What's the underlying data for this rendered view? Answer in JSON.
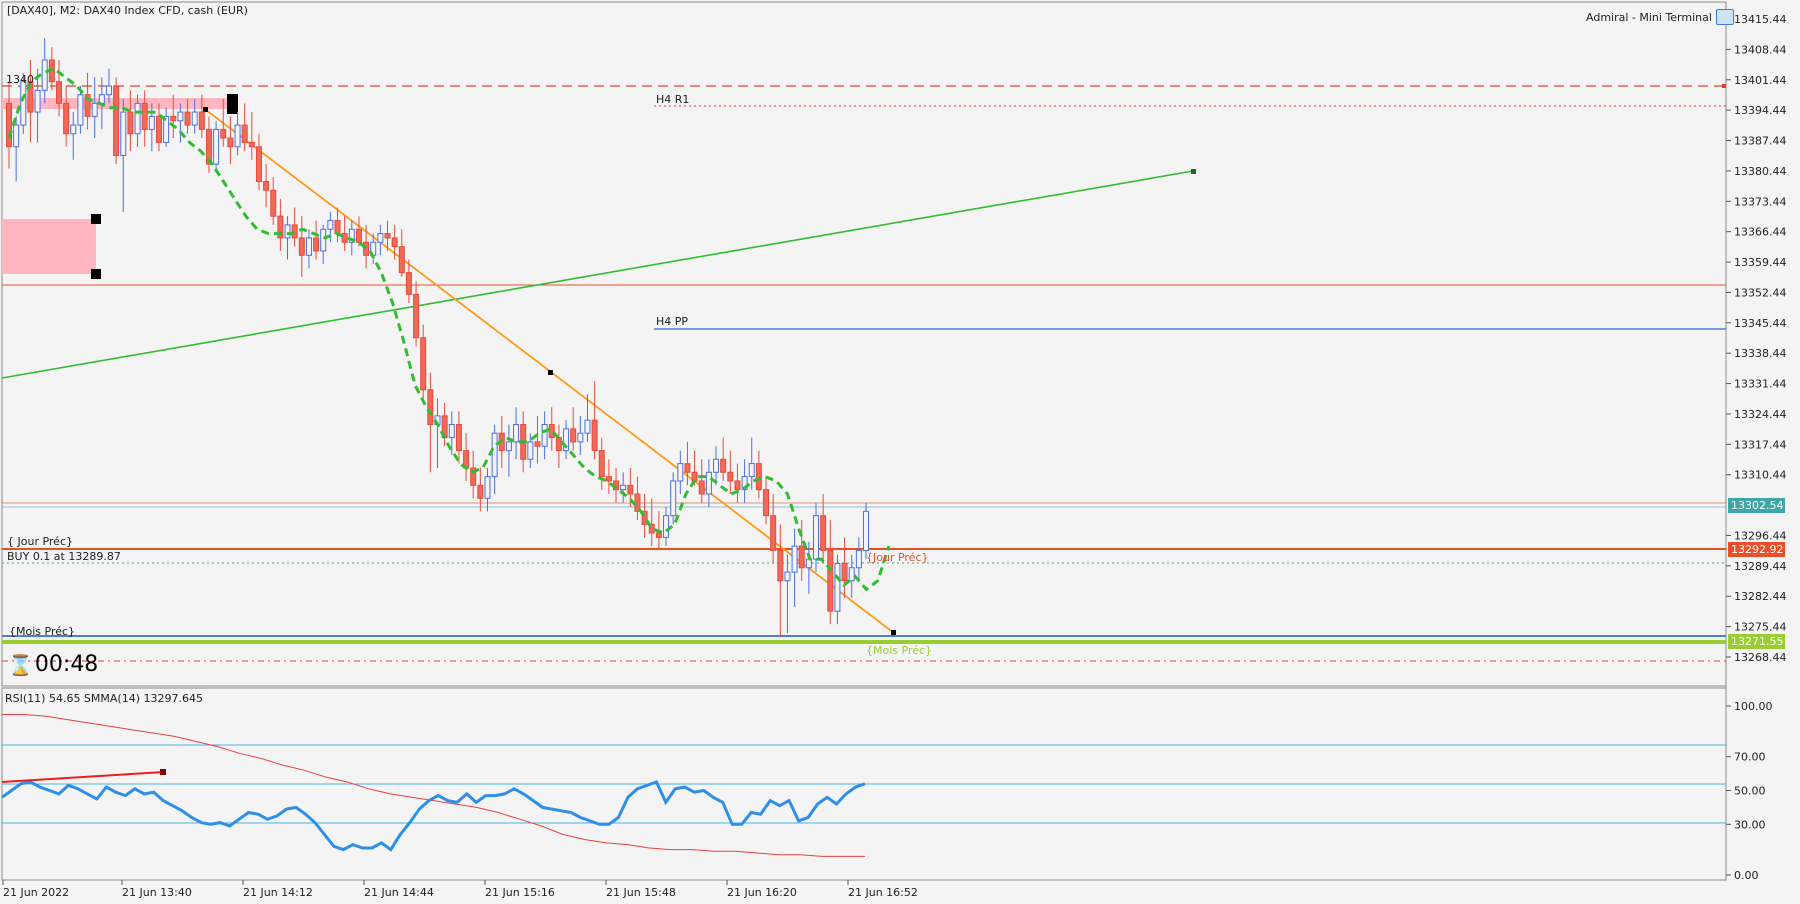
{
  "window": {
    "title": "[DAX40], M2:  DAX40 Index CFD, cash (EUR)",
    "badge": "Admiral - Mini Terminal"
  },
  "countdown": "00:48",
  "price_axis": {
    "labels": [
      "13415.44",
      "13408.44",
      "13401.44",
      "13394.44",
      "13387.44",
      "13380.44",
      "13373.44",
      "13366.44",
      "13359.44",
      "13352.44",
      "13345.44",
      "13338.44",
      "13331.44",
      "13324.44",
      "13317.44",
      "13310.44",
      "13296.44",
      "13289.44",
      "13282.44",
      "13275.44",
      "13268.44"
    ],
    "current_price_tag": "13302.54",
    "order_price_tag": "13292.92",
    "month_prev_tag": "13271.55",
    "colors": {
      "current": "#3fa6a6",
      "order": "#e8502a",
      "month": "#9acd32"
    }
  },
  "labels": {
    "h4_r1": "H4 R1",
    "h4_pp": "H4 PP",
    "jour_prec_left": "{ Jour Préc}",
    "buy_order": "BUY 0.1 at 13289.87",
    "jour_prec_right": "{Jour Préc}",
    "mois_prec_left": "{Mois Préc}",
    "mois_prec_right": "{Mois Préc}",
    "truncated_price": "1340"
  },
  "rsi": {
    "title": "RSI(11) 54.65 SMMA(14) 13297.645",
    "levels": [
      "100.00",
      "70.00",
      "50.00",
      "30.00",
      "0.00"
    ]
  },
  "time_axis": {
    "labels": [
      "21 Jun 2022",
      "21 Jun 13:40",
      "21 Jun 14:12",
      "21 Jun 14:44",
      "21 Jun 15:16",
      "21 Jun 15:48",
      "21 Jun 16:20",
      "21 Jun 16:52"
    ]
  },
  "chart_data": {
    "type": "candlestick",
    "symbol": "DAX40",
    "timeframe": "M2",
    "ylim": [
      13264,
      13419
    ],
    "candles_ohlc": [
      [
        13396,
        13401,
        13381,
        13386
      ],
      [
        13386,
        13393,
        13378,
        13391
      ],
      [
        13391,
        13403,
        13389,
        13401
      ],
      [
        13401,
        13406,
        13387,
        13394
      ],
      [
        13394,
        13404,
        13387,
        13399
      ],
      [
        13399,
        13411,
        13396,
        13406
      ],
      [
        13406,
        13409,
        13399,
        13401
      ],
      [
        13401,
        13406,
        13393,
        13396
      ],
      [
        13396,
        13400,
        13386,
        13389
      ],
      [
        13389,
        13394,
        13383,
        13391
      ],
      [
        13391,
        13400,
        13389,
        13398
      ],
      [
        13398,
        13403,
        13390,
        13393
      ],
      [
        13393,
        13402,
        13388,
        13396
      ],
      [
        13396,
        13402,
        13390,
        13398
      ],
      [
        13398,
        13404,
        13396,
        13400
      ],
      [
        13400,
        13402,
        13382,
        13384
      ],
      [
        13384,
        13397,
        13371,
        13394
      ],
      [
        13394,
        13399,
        13385,
        13389
      ],
      [
        13389,
        13398,
        13386,
        13396
      ],
      [
        13396,
        13399,
        13386,
        13390
      ],
      [
        13390,
        13396,
        13385,
        13393
      ],
      [
        13393,
        13396,
        13385,
        13387
      ],
      [
        13387,
        13395,
        13386,
        13393
      ],
      [
        13393,
        13398,
        13388,
        13392
      ],
      [
        13392,
        13396,
        13387,
        13394
      ],
      [
        13394,
        13397,
        13389,
        13391
      ],
      [
        13391,
        13397,
        13389,
        13394
      ],
      [
        13394,
        13398,
        13388,
        13390
      ],
      [
        13390,
        13393,
        13380,
        13382
      ],
      [
        13382,
        13392,
        13380,
        13390
      ],
      [
        13390,
        13397,
        13386,
        13388
      ],
      [
        13388,
        13393,
        13382,
        13386
      ],
      [
        13386,
        13394,
        13384,
        13391
      ],
      [
        13391,
        13396,
        13385,
        13387
      ],
      [
        13387,
        13394,
        13383,
        13386
      ],
      [
        13386,
        13389,
        13376,
        13378
      ],
      [
        13378,
        13382,
        13372,
        13376
      ],
      [
        13376,
        13379,
        13368,
        13370
      ],
      [
        13370,
        13374,
        13362,
        13365
      ],
      [
        13365,
        13370,
        13360,
        13368
      ],
      [
        13368,
        13372,
        13363,
        13365
      ],
      [
        13365,
        13370,
        13356,
        13361
      ],
      [
        13361,
        13367,
        13358,
        13365
      ],
      [
        13365,
        13369,
        13360,
        13362
      ],
      [
        13362,
        13368,
        13359,
        13367
      ],
      [
        13367,
        13371,
        13364,
        13369
      ],
      [
        13369,
        13372,
        13364,
        13366
      ],
      [
        13366,
        13370,
        13362,
        13364
      ],
      [
        13364,
        13369,
        13361,
        13367
      ],
      [
        13367,
        13370,
        13363,
        13364
      ],
      [
        13364,
        13368,
        13358,
        13361
      ],
      [
        13361,
        13366,
        13359,
        13364
      ],
      [
        13364,
        13368,
        13361,
        13366
      ],
      [
        13366,
        13369,
        13362,
        13365
      ],
      [
        13365,
        13368,
        13360,
        13363
      ],
      [
        13363,
        13367,
        13356,
        13357
      ],
      [
        13357,
        13360,
        13350,
        13352
      ],
      [
        13352,
        13355,
        13340,
        13342
      ],
      [
        13342,
        13345,
        13328,
        13330
      ],
      [
        13330,
        13334,
        13311,
        13322
      ],
      [
        13322,
        13328,
        13312,
        13324
      ],
      [
        13324,
        13327,
        13317,
        13319
      ],
      [
        13319,
        13325,
        13315,
        13322
      ],
      [
        13322,
        13325,
        13313,
        13316
      ],
      [
        13316,
        13320,
        13309,
        13312
      ],
      [
        13312,
        13316,
        13305,
        13308
      ],
      [
        13308,
        13312,
        13302,
        13305
      ],
      [
        13305,
        13312,
        13302,
        13310
      ],
      [
        13310,
        13322,
        13306,
        13320
      ],
      [
        13320,
        13324,
        13312,
        13316
      ],
      [
        13316,
        13322,
        13310,
        13318
      ],
      [
        13318,
        13326,
        13314,
        13322
      ],
      [
        13322,
        13325,
        13311,
        13314
      ],
      [
        13314,
        13320,
        13312,
        13318
      ],
      [
        13318,
        13324,
        13313,
        13317
      ],
      [
        13317,
        13325,
        13314,
        13322
      ],
      [
        13322,
        13326,
        13316,
        13319
      ],
      [
        13319,
        13322,
        13312,
        13316
      ],
      [
        13316,
        13323,
        13314,
        13321
      ],
      [
        13321,
        13326,
        13316,
        13318
      ],
      [
        13318,
        13324,
        13315,
        13320
      ],
      [
        13320,
        13329,
        13318,
        13323
      ],
      [
        13323,
        13332,
        13314,
        13316
      ],
      [
        13316,
        13319,
        13307,
        13310
      ],
      [
        13310,
        13314,
        13306,
        13309
      ],
      [
        13309,
        13312,
        13304,
        13307
      ],
      [
        13307,
        13311,
        13304,
        13308
      ],
      [
        13308,
        13312,
        13303,
        13306
      ],
      [
        13306,
        13310,
        13300,
        13302
      ],
      [
        13302,
        13306,
        13296,
        13299
      ],
      [
        13299,
        13305,
        13294,
        13297
      ],
      [
        13297,
        13302,
        13293,
        13296
      ],
      [
        13296,
        13303,
        13294,
        13301
      ],
      [
        13301,
        13311,
        13299,
        13309
      ],
      [
        13309,
        13316,
        13306,
        13313
      ],
      [
        13313,
        13318,
        13308,
        13311
      ],
      [
        13311,
        13316,
        13308,
        13309
      ],
      [
        13309,
        13314,
        13304,
        13306
      ],
      [
        13306,
        13314,
        13303,
        13311
      ],
      [
        13311,
        13317,
        13308,
        13314
      ],
      [
        13314,
        13319,
        13309,
        13311
      ],
      [
        13311,
        13316,
        13306,
        13309
      ],
      [
        13309,
        13313,
        13304,
        13307
      ],
      [
        13307,
        13314,
        13304,
        13310
      ],
      [
        13310,
        13319,
        13307,
        13313
      ],
      [
        13313,
        13316,
        13305,
        13307
      ],
      [
        13307,
        13310,
        13299,
        13301
      ],
      [
        13301,
        13306,
        13290,
        13293
      ],
      [
        13293,
        13299,
        13273,
        13286
      ],
      [
        13286,
        13292,
        13274,
        13288
      ],
      [
        13288,
        13298,
        13280,
        13294
      ],
      [
        13294,
        13300,
        13286,
        13289
      ],
      [
        13289,
        13295,
        13283,
        13291
      ],
      [
        13291,
        13304,
        13288,
        13301
      ],
      [
        13301,
        13306,
        13290,
        13293
      ],
      [
        13293,
        13300,
        13276,
        13279
      ],
      [
        13279,
        13292,
        13276,
        13290
      ],
      [
        13290,
        13296,
        13282,
        13286
      ],
      [
        13286,
        13292,
        13282,
        13289
      ],
      [
        13289,
        13296,
        13286,
        13293
      ],
      [
        13293,
        13304,
        13291,
        13302
      ]
    ],
    "fast_ma": [
      13388,
      13396,
      13401,
      13403,
      13404,
      13402,
      13400,
      13397,
      13396,
      13395,
      13395,
      13394,
      13394,
      13394,
      13392,
      13390,
      13387,
      13385,
      13382,
      13378,
      13374,
      13370,
      13367,
      13366,
      13366,
      13366,
      13367,
      13366,
      13365,
      13366,
      13365,
      13364,
      13362,
      13357,
      13350,
      13341,
      13331,
      13326,
      13322,
      13317,
      13313,
      13311,
      13312,
      13317,
      13319,
      13318,
      13318,
      13320,
      13321,
      13318,
      13315,
      13312,
      13310,
      13309,
      13307,
      13305,
      13302,
      13298,
      13297,
      13299,
      13306,
      13310,
      13310,
      13308,
      13306,
      13307,
      13309,
      13310,
      13309,
      13306,
      13298,
      13291,
      13291,
      13288,
      13285,
      13287,
      13284,
      13286,
      13294
    ],
    "rsi_values": [
      46,
      50,
      54,
      55,
      52,
      50,
      48,
      53,
      51,
      48,
      45,
      52,
      49,
      47,
      51,
      48,
      49,
      44,
      41,
      38,
      34,
      31,
      30,
      31,
      29,
      33,
      37,
      36,
      33,
      35,
      39,
      40,
      36,
      31,
      24,
      17,
      15,
      18,
      16,
      16,
      19,
      15,
      24,
      31,
      39,
      44,
      47,
      44,
      43,
      48,
      43,
      47,
      47,
      48,
      51,
      48,
      44,
      40,
      39,
      38,
      37,
      34,
      32,
      30,
      30,
      34,
      46,
      51,
      53,
      55,
      43,
      51,
      52,
      49,
      50,
      46,
      43,
      30,
      30,
      37,
      36,
      44,
      41,
      44,
      32,
      34,
      42,
      46,
      42,
      48,
      52,
      54
    ],
    "rsi_signal": [
      95,
      95,
      94,
      92,
      90,
      88,
      86,
      84,
      82,
      79,
      76,
      72,
      69,
      65,
      62,
      58,
      55,
      51,
      48,
      46,
      44,
      42,
      40,
      37,
      33,
      29,
      24,
      21,
      19,
      18,
      16,
      15,
      15,
      14,
      14,
      13,
      12,
      12,
      11,
      11,
      11
    ],
    "levels": {
      "h4_r1": 13395,
      "h4_pp": 13343.5,
      "jour_prec": 13292.92,
      "mois_prec": 13271.55,
      "current": 13302.54
    }
  }
}
